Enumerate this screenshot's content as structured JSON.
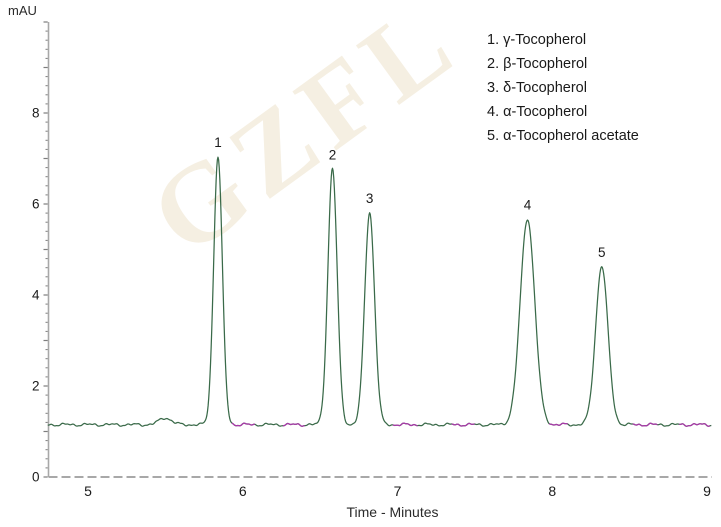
{
  "watermark": {
    "text": "GZFL",
    "color": "#f5efe2"
  },
  "colors": {
    "trace": "#3a6a49",
    "overlay_trace": "#a83aa8",
    "axis_line": "#a8a8a8",
    "tick": "#7d7d7d",
    "label_text": "#1a1a1a",
    "background": "#ffffff",
    "watermark": "#f5efe2"
  },
  "legend": {
    "items": [
      "1. γ-Tocopherol",
      "2. β-Tocopherol",
      "3. δ-Tocopherol",
      "4. α-Tocopherol",
      "5. α-Tocopherol acetate"
    ]
  },
  "chart_data": {
    "type": "line",
    "title": "",
    "xlabel": "Time - Minutes",
    "ylabel": "mAU",
    "xlim": [
      4.74,
      9.03
    ],
    "ylim": [
      0,
      10
    ],
    "x_ticks": [
      5,
      6,
      7,
      8,
      9
    ],
    "y_ticks": [
      0,
      2,
      4,
      6,
      8
    ],
    "y_minor_tick_step": 0.2,
    "grid": false,
    "legend_position": "top-right",
    "baseline_mAU": 1.15,
    "noise_amplitude_mAU": 0.02,
    "peaks": [
      {
        "label": "1",
        "name": "γ-Tocopherol",
        "time_min": 5.84,
        "apex_mAU": 7.05,
        "sigma_min": 0.028
      },
      {
        "label": "2",
        "name": "β-Tocopherol",
        "time_min": 6.58,
        "apex_mAU": 6.78,
        "sigma_min": 0.03
      },
      {
        "label": "3",
        "name": "δ-Tocopherol",
        "time_min": 6.82,
        "apex_mAU": 5.82,
        "sigma_min": 0.032
      },
      {
        "label": "4",
        "name": "α-Tocopherol",
        "time_min": 7.84,
        "apex_mAU": 5.68,
        "sigma_min": 0.047
      },
      {
        "label": "5",
        "name": "α-Tocopherol acetate",
        "time_min": 8.32,
        "apex_mAU": 4.64,
        "sigma_min": 0.04
      }
    ],
    "minor_bump": {
      "time_min": 5.5,
      "apex_mAU": 1.3,
      "sigma_min": 0.04
    },
    "overlay_segments_min": [
      [
        5.93,
        6.08
      ],
      [
        6.26,
        6.4
      ],
      [
        6.97,
        7.13
      ],
      [
        7.35,
        7.5
      ],
      [
        7.98,
        8.1
      ],
      [
        8.52,
        8.68
      ],
      [
        8.82,
        9.02
      ]
    ]
  }
}
